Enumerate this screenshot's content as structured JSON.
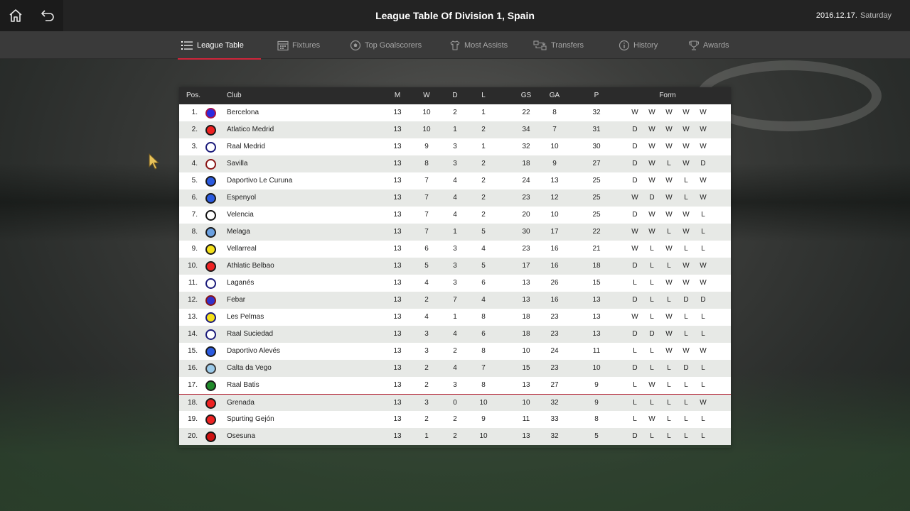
{
  "header": {
    "title": "League Table Of Division 1, Spain",
    "date": "2016.12.17.",
    "weekday": "Saturday"
  },
  "tabs": [
    {
      "label": "League Table",
      "icon": "list-icon",
      "active": true
    },
    {
      "label": "Fixtures",
      "icon": "calendar-icon",
      "active": false
    },
    {
      "label": "Top Goalscorers",
      "icon": "ball-icon",
      "active": false
    },
    {
      "label": "Most Assists",
      "icon": "shirt-icon",
      "active": false
    },
    {
      "label": "Transfers",
      "icon": "transfer-icon",
      "active": false
    },
    {
      "label": "History",
      "icon": "info-icon",
      "active": false
    },
    {
      "label": "Awards",
      "icon": "trophy-icon",
      "active": false
    }
  ],
  "table": {
    "columns": {
      "pos": "Pos.",
      "club": "Club",
      "m": "M",
      "w": "W",
      "d": "D",
      "l": "L",
      "gs": "GS",
      "ga": "GA",
      "p": "P",
      "form": "Form"
    },
    "rows": [
      {
        "pos": "1.",
        "club": "Bercelona",
        "badge_fill": "#2b2be0",
        "badge_ring": "#a5154a",
        "m": "13",
        "w": "10",
        "d": "2",
        "l": "1",
        "gs": "22",
        "ga": "8",
        "p": "32",
        "form": [
          "W",
          "W",
          "W",
          "W",
          "W"
        ]
      },
      {
        "pos": "2.",
        "club": "Atlatico Medrid",
        "badge_fill": "#ee2222",
        "badge_ring": "#1a1a1a",
        "m": "13",
        "w": "10",
        "d": "1",
        "l": "2",
        "gs": "34",
        "ga": "7",
        "p": "31",
        "form": [
          "D",
          "W",
          "W",
          "W",
          "W"
        ]
      },
      {
        "pos": "3.",
        "club": "Raal Medrid",
        "badge_fill": "#ffffff",
        "badge_ring": "#1a1a7a",
        "m": "13",
        "w": "9",
        "d": "3",
        "l": "1",
        "gs": "32",
        "ga": "10",
        "p": "30",
        "form": [
          "D",
          "W",
          "W",
          "W",
          "W"
        ]
      },
      {
        "pos": "4.",
        "club": "Savilla",
        "badge_fill": "#ffffff",
        "badge_ring": "#8a1515",
        "m": "13",
        "w": "8",
        "d": "3",
        "l": "2",
        "gs": "18",
        "ga": "9",
        "p": "27",
        "form": [
          "D",
          "W",
          "L",
          "W",
          "D"
        ]
      },
      {
        "pos": "5.",
        "club": "Daportivo Le Curuna",
        "badge_fill": "#2b5be0",
        "badge_ring": "#1a1a1a",
        "m": "13",
        "w": "7",
        "d": "4",
        "l": "2",
        "gs": "24",
        "ga": "13",
        "p": "25",
        "form": [
          "D",
          "W",
          "W",
          "L",
          "W"
        ]
      },
      {
        "pos": "6.",
        "club": "Espenyol",
        "badge_fill": "#2b5be0",
        "badge_ring": "#1a1a1a",
        "m": "13",
        "w": "7",
        "d": "4",
        "l": "2",
        "gs": "23",
        "ga": "12",
        "p": "25",
        "form": [
          "W",
          "D",
          "W",
          "L",
          "W"
        ]
      },
      {
        "pos": "7.",
        "club": "Velencia",
        "badge_fill": "#ffffff",
        "badge_ring": "#111111",
        "m": "13",
        "w": "7",
        "d": "4",
        "l": "2",
        "gs": "20",
        "ga": "10",
        "p": "25",
        "form": [
          "D",
          "W",
          "W",
          "W",
          "L"
        ]
      },
      {
        "pos": "8.",
        "club": "Melaga",
        "badge_fill": "#6aa0e0",
        "badge_ring": "#1a1a1a",
        "m": "13",
        "w": "7",
        "d": "1",
        "l": "5",
        "gs": "30",
        "ga": "17",
        "p": "22",
        "form": [
          "W",
          "W",
          "L",
          "W",
          "L"
        ]
      },
      {
        "pos": "9.",
        "club": "Vellarreal",
        "badge_fill": "#f5e11a",
        "badge_ring": "#1a1a1a",
        "m": "13",
        "w": "6",
        "d": "3",
        "l": "4",
        "gs": "23",
        "ga": "16",
        "p": "21",
        "form": [
          "W",
          "L",
          "W",
          "L",
          "L"
        ]
      },
      {
        "pos": "10.",
        "club": "Athlatic Belbao",
        "badge_fill": "#ee2222",
        "badge_ring": "#1a1a1a",
        "m": "13",
        "w": "5",
        "d": "3",
        "l": "5",
        "gs": "17",
        "ga": "16",
        "p": "18",
        "form": [
          "D",
          "L",
          "L",
          "W",
          "W"
        ]
      },
      {
        "pos": "11.",
        "club": "Laganés",
        "badge_fill": "#ffffff",
        "badge_ring": "#1a1a7a",
        "m": "13",
        "w": "4",
        "d": "3",
        "l": "6",
        "gs": "13",
        "ga": "26",
        "p": "15",
        "form": [
          "L",
          "L",
          "W",
          "W",
          "W"
        ]
      },
      {
        "pos": "12.",
        "club": "Febar",
        "badge_fill": "#3333cc",
        "badge_ring": "#8a1515",
        "m": "13",
        "w": "2",
        "d": "7",
        "l": "4",
        "gs": "13",
        "ga": "16",
        "p": "13",
        "form": [
          "D",
          "L",
          "L",
          "D",
          "D"
        ]
      },
      {
        "pos": "13.",
        "club": "Les Pelmas",
        "badge_fill": "#f5e11a",
        "badge_ring": "#1a1a7a",
        "m": "13",
        "w": "4",
        "d": "1",
        "l": "8",
        "gs": "18",
        "ga": "23",
        "p": "13",
        "form": [
          "W",
          "L",
          "W",
          "L",
          "L"
        ]
      },
      {
        "pos": "14.",
        "club": "Raal Suciedad",
        "badge_fill": "#ffffff",
        "badge_ring": "#1a1a7a",
        "m": "13",
        "w": "3",
        "d": "4",
        "l": "6",
        "gs": "18",
        "ga": "23",
        "p": "13",
        "form": [
          "D",
          "D",
          "W",
          "L",
          "L"
        ]
      },
      {
        "pos": "15.",
        "club": "Daportivo Alevés",
        "badge_fill": "#2b5be0",
        "badge_ring": "#1a1a1a",
        "m": "13",
        "w": "3",
        "d": "2",
        "l": "8",
        "gs": "10",
        "ga": "24",
        "p": "11",
        "form": [
          "L",
          "L",
          "W",
          "W",
          "W"
        ]
      },
      {
        "pos": "16.",
        "club": "Calta da Vego",
        "badge_fill": "#9ccbea",
        "badge_ring": "#3a3a3a",
        "m": "13",
        "w": "2",
        "d": "4",
        "l": "7",
        "gs": "15",
        "ga": "23",
        "p": "10",
        "form": [
          "D",
          "L",
          "L",
          "D",
          "L"
        ]
      },
      {
        "pos": "17.",
        "club": "Raal Batis",
        "badge_fill": "#1f8a2a",
        "badge_ring": "#1a1a1a",
        "m": "13",
        "w": "2",
        "d": "3",
        "l": "8",
        "gs": "13",
        "ga": "27",
        "p": "9",
        "form": [
          "L",
          "W",
          "L",
          "L",
          "L"
        ]
      },
      {
        "pos": "18.",
        "club": "Grenada",
        "badge_fill": "#ee2222",
        "badge_ring": "#1a1a1a",
        "m": "13",
        "w": "3",
        "d": "0",
        "l": "10",
        "gs": "10",
        "ga": "32",
        "p": "9",
        "form": [
          "L",
          "L",
          "L",
          "L",
          "W"
        ]
      },
      {
        "pos": "19.",
        "club": "Spurting Gejón",
        "badge_fill": "#ee2222",
        "badge_ring": "#1a1a1a",
        "m": "13",
        "w": "2",
        "d": "2",
        "l": "9",
        "gs": "11",
        "ga": "33",
        "p": "8",
        "form": [
          "L",
          "W",
          "L",
          "L",
          "L"
        ]
      },
      {
        "pos": "20.",
        "club": "Osesuna",
        "badge_fill": "#cc1111",
        "badge_ring": "#111111",
        "m": "13",
        "w": "1",
        "d": "2",
        "l": "10",
        "gs": "13",
        "ga": "32",
        "p": "5",
        "form": [
          "D",
          "L",
          "L",
          "L",
          "L"
        ]
      }
    ]
  },
  "colors": {
    "accent": "#d0243a",
    "topbar": "#232323",
    "tabbar": "#3a3a3a"
  }
}
